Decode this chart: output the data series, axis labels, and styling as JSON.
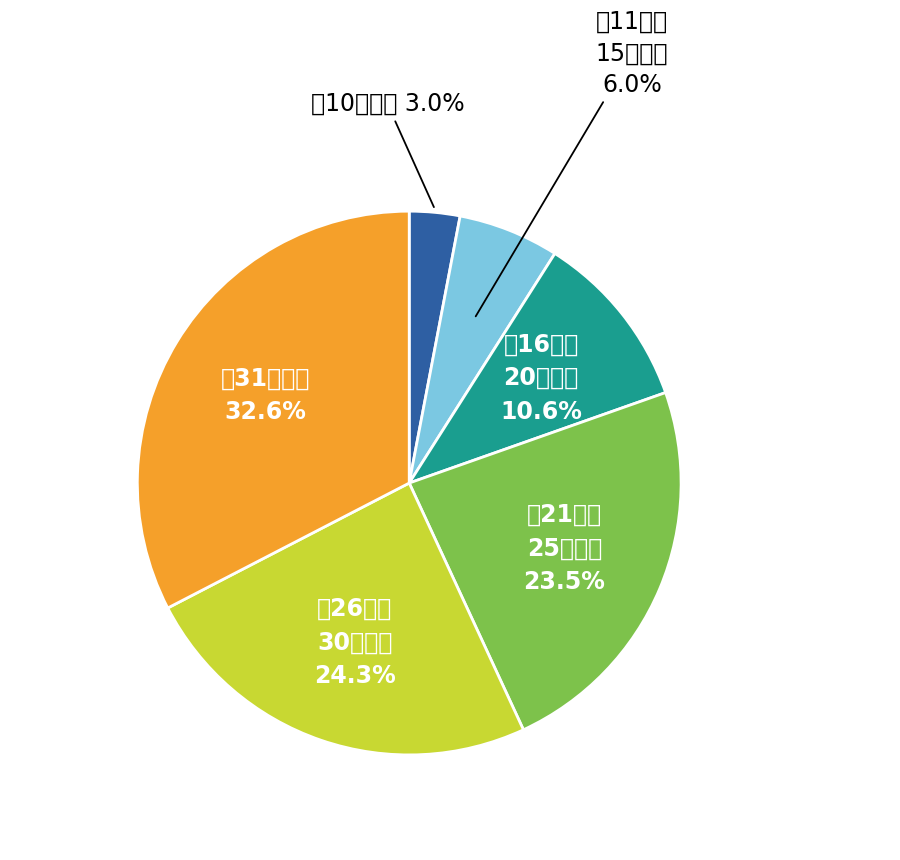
{
  "values": [
    3.0,
    6.0,
    10.6,
    23.5,
    24.3,
    32.6
  ],
  "colors": [
    "#2e5fa3",
    "#7bc8e2",
    "#1a9e8f",
    "#7dc24b",
    "#c8d832",
    "#f5a02a"
  ],
  "inside_labels": [
    "",
    "",
    "範16年～\n20年以下\n10.6%",
    "範21年～\n25年以下\n23.5%",
    "範26年～\n30年以下\n24.3%",
    "範31年以上\n32.6%"
  ],
  "label0_text": "範10年以下 3.0%",
  "label1_text": "範11年～\n15年以下\n6.0%",
  "figsize": [
    9.0,
    8.6
  ],
  "dpi": 100,
  "background_color": "#ffffff",
  "font_size_inside": 17,
  "font_size_outside": 17,
  "startangle": 90
}
